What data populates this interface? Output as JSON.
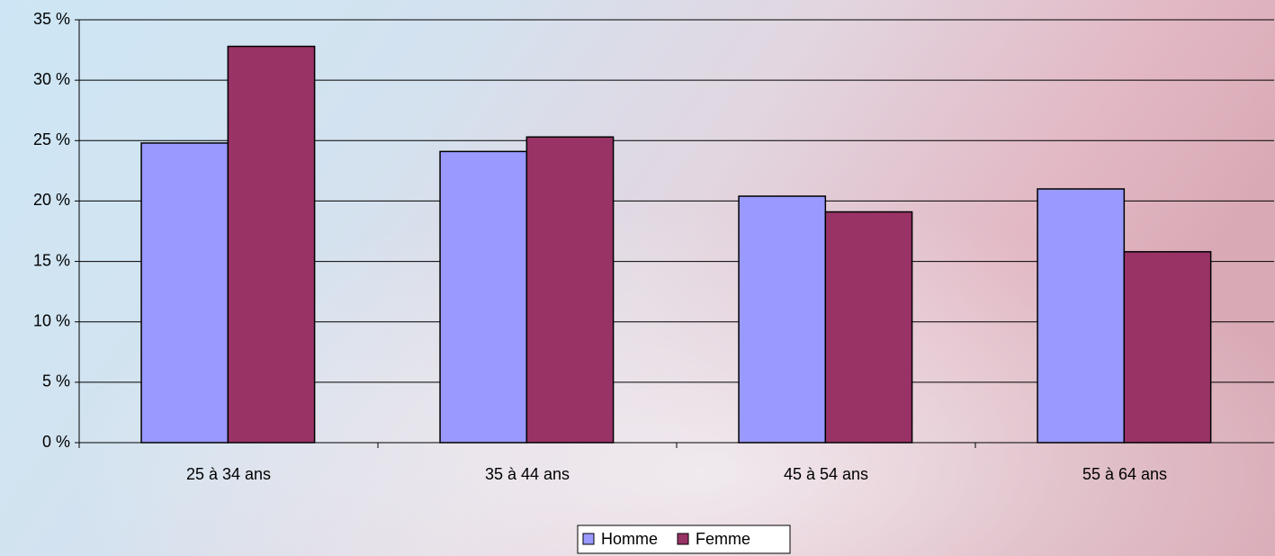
{
  "chart_data": {
    "type": "bar",
    "categories": [
      "25 à 34 ans",
      "35 à 44 ans",
      "45 à 54 ans",
      "55 à 64 ans"
    ],
    "series": [
      {
        "name": "Homme",
        "color": "#9999ff",
        "values": [
          24.8,
          24.1,
          20.4,
          21.0
        ]
      },
      {
        "name": "Femme",
        "color": "#993366",
        "values": [
          32.8,
          25.3,
          19.1,
          15.8
        ]
      }
    ],
    "ylim": [
      0,
      35
    ],
    "yticks": [
      {
        "value": 0,
        "label": "0 %"
      },
      {
        "value": 5,
        "label": "5 %"
      },
      {
        "value": 10,
        "label": "10 %"
      },
      {
        "value": 15,
        "label": "15 %"
      },
      {
        "value": 20,
        "label": "20 %"
      },
      {
        "value": 25,
        "label": "25 %"
      },
      {
        "value": 30,
        "label": "30 %"
      },
      {
        "value": 35,
        "label": "35 %"
      }
    ],
    "grid": true,
    "legend": "bottom"
  }
}
